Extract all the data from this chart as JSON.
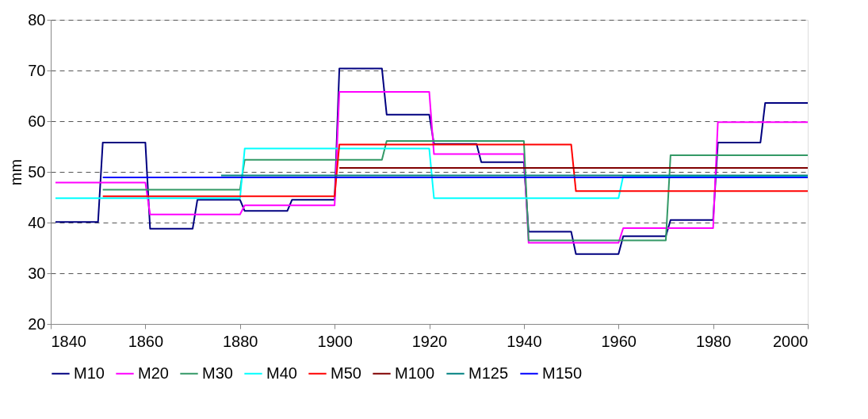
{
  "chart_data": {
    "type": "line",
    "ylabel": "mm",
    "xlim": [
      1840,
      2000
    ],
    "ylim": [
      20,
      80
    ],
    "xticks": [
      1840,
      1860,
      1880,
      1900,
      1920,
      1940,
      1960,
      1980,
      2000
    ],
    "yticks": [
      20,
      30,
      40,
      50,
      60,
      70,
      80
    ],
    "grid": "y",
    "legend": "bottom",
    "line_style": "solid",
    "marker": "none",
    "series": [
      {
        "name": "M10",
        "color": "#000080",
        "x": [
          1841,
          1850,
          1851,
          1860,
          1861,
          1870,
          1871,
          1880,
          1881,
          1890,
          1891,
          1900,
          1901,
          1910,
          1911,
          1920,
          1921,
          1930,
          1931,
          1940,
          1941,
          1950,
          1951,
          1960,
          1961,
          1970,
          1971,
          1980,
          1981,
          1990,
          1991,
          2000
        ],
        "values": [
          40.1,
          40.1,
          55.8,
          55.8,
          38.8,
          38.8,
          44.5,
          44.5,
          42.3,
          42.3,
          44.5,
          44.5,
          70.4,
          70.4,
          61.3,
          61.3,
          55.5,
          55.5,
          51.9,
          51.9,
          38.2,
          38.2,
          33.8,
          33.8,
          37.3,
          37.3,
          40.5,
          40.5,
          55.8,
          55.8,
          63.6,
          63.6
        ]
      },
      {
        "name": "M20",
        "color": "#ff00ff",
        "x": [
          1841,
          1860,
          1861,
          1880,
          1881,
          1900,
          1901,
          1920,
          1921,
          1940,
          1941,
          1960,
          1961,
          1980,
          1981,
          2000
        ],
        "values": [
          47.9,
          47.9,
          41.6,
          41.6,
          43.4,
          43.4,
          65.8,
          65.8,
          53.5,
          53.5,
          36.0,
          36.0,
          38.9,
          38.9,
          59.8,
          59.8
        ]
      },
      {
        "name": "M30",
        "color": "#339966",
        "x": [
          1851,
          1880,
          1881,
          1910,
          1911,
          1940,
          1941,
          1970,
          1971,
          2000
        ],
        "values": [
          46.5,
          46.5,
          52.4,
          52.4,
          56.1,
          56.1,
          36.5,
          36.5,
          53.3,
          53.3
        ]
      },
      {
        "name": "M40",
        "color": "#00ffff",
        "x": [
          1841,
          1880,
          1881,
          1920,
          1921,
          1960,
          1961,
          2000
        ],
        "values": [
          44.8,
          44.8,
          54.6,
          54.6,
          44.8,
          44.8,
          49.2,
          49.2
        ]
      },
      {
        "name": "M50",
        "color": "#ff0000",
        "x": [
          1851,
          1900,
          1901,
          1950,
          1951,
          2000
        ],
        "values": [
          45.2,
          45.2,
          55.4,
          55.4,
          46.2,
          46.2
        ]
      },
      {
        "name": "M100",
        "color": "#800000",
        "x": [
          1901,
          2000
        ],
        "values": [
          50.8,
          50.8
        ]
      },
      {
        "name": "M125",
        "color": "#008080",
        "x": [
          1876,
          2000
        ],
        "values": [
          49.3,
          49.3
        ]
      },
      {
        "name": "M150",
        "color": "#0000ff",
        "x": [
          1851,
          2000
        ],
        "values": [
          48.9,
          48.9
        ]
      }
    ]
  }
}
